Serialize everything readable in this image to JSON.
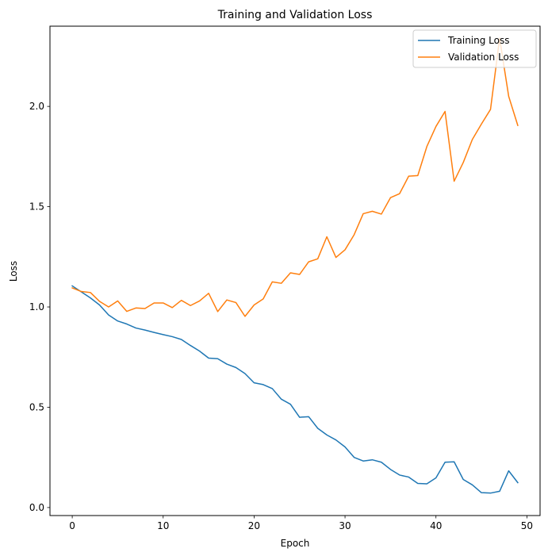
{
  "chart_data": {
    "type": "line",
    "title": "Training and Validation Loss",
    "xlabel": "Epoch",
    "ylabel": "Loss",
    "xlim": [
      -2.45,
      51.45
    ],
    "ylim": [
      -0.04,
      2.4
    ],
    "xticks": [
      0,
      10,
      20,
      30,
      40,
      50
    ],
    "yticks": [
      0.0,
      0.5,
      1.0,
      1.5,
      2.0
    ],
    "ytick_labels": [
      "0.0",
      "0.5",
      "1.0",
      "1.5",
      "2.0"
    ],
    "grid": false,
    "legend_position": "top-right",
    "x": [
      0,
      1,
      2,
      3,
      4,
      5,
      6,
      7,
      8,
      9,
      10,
      11,
      12,
      13,
      14,
      15,
      16,
      17,
      18,
      19,
      20,
      21,
      22,
      23,
      24,
      25,
      26,
      27,
      28,
      29,
      30,
      31,
      32,
      33,
      34,
      35,
      36,
      37,
      38,
      39,
      40,
      41,
      42,
      43,
      44,
      45,
      46,
      47,
      48,
      49
    ],
    "series": [
      {
        "name": "Training Loss",
        "color": "#1f77b4",
        "values": [
          1.105,
          1.075,
          1.045,
          1.01,
          0.96,
          0.93,
          0.915,
          0.895,
          0.885,
          0.873,
          0.862,
          0.852,
          0.838,
          0.808,
          0.78,
          0.745,
          0.742,
          0.715,
          0.698,
          0.668,
          0.622,
          0.613,
          0.593,
          0.54,
          0.515,
          0.45,
          0.453,
          0.395,
          0.362,
          0.337,
          0.302,
          0.25,
          0.232,
          0.238,
          0.226,
          0.19,
          0.162,
          0.152,
          0.12,
          0.118,
          0.148,
          0.226,
          0.228,
          0.14,
          0.113,
          0.074,
          0.072,
          0.081,
          0.183,
          0.124
        ]
      },
      {
        "name": "Validation Loss",
        "color": "#ff7f0e",
        "values": [
          1.095,
          1.077,
          1.072,
          1.028,
          1.0,
          1.03,
          0.978,
          0.995,
          0.992,
          1.02,
          1.02,
          0.997,
          1.033,
          1.007,
          1.03,
          1.068,
          0.977,
          1.035,
          1.022,
          0.953,
          1.01,
          1.04,
          1.125,
          1.118,
          1.17,
          1.162,
          1.225,
          1.24,
          1.35,
          1.247,
          1.285,
          1.36,
          1.465,
          1.477,
          1.463,
          1.545,
          1.565,
          1.652,
          1.655,
          1.8,
          1.9,
          1.975,
          1.627,
          1.72,
          1.835,
          1.912,
          1.985,
          2.34,
          2.05,
          1.905
        ]
      }
    ]
  }
}
